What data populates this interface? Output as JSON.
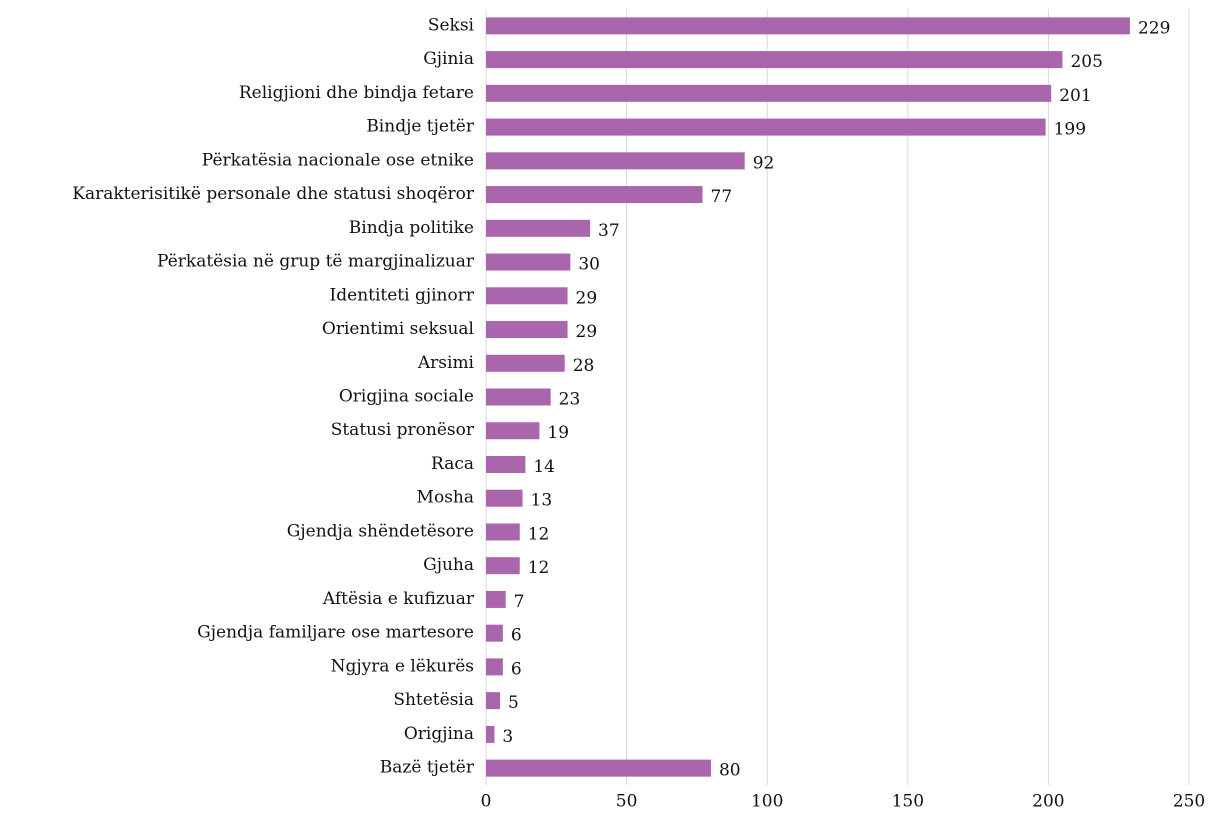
{
  "chart_data": {
    "type": "bar",
    "orientation": "horizontal",
    "categories": [
      "Seksi",
      "Gjinia",
      "Religjioni dhe bindja fetare",
      "Bindje tjetër",
      "Përkatësia nacionale ose etnike",
      "Karakterisitikë personale dhe statusi shoqëror",
      "Bindja politike",
      "Përkatësia në grup të margjinalizuar",
      "Identiteti gjinorr",
      "Orientimi seksual",
      "Arsimi",
      "Origjina sociale",
      "Statusi pronësor",
      "Raca",
      "Mosha",
      "Gjendja shëndetësore",
      "Gjuha",
      "Aftësia e kufizuar",
      "Gjendja familjare ose martesore",
      "Ngjyra e lëkurës",
      "Shtetësia",
      "Origjina",
      "Bazë tjetër"
    ],
    "values": [
      229,
      205,
      201,
      199,
      92,
      77,
      37,
      30,
      29,
      29,
      28,
      23,
      19,
      14,
      13,
      12,
      12,
      7,
      6,
      6,
      5,
      3,
      80
    ],
    "color": "#a966ad",
    "xlim": [
      0,
      250
    ],
    "xticks": [
      0,
      50,
      100,
      150,
      200,
      250
    ],
    "grid": true
  }
}
